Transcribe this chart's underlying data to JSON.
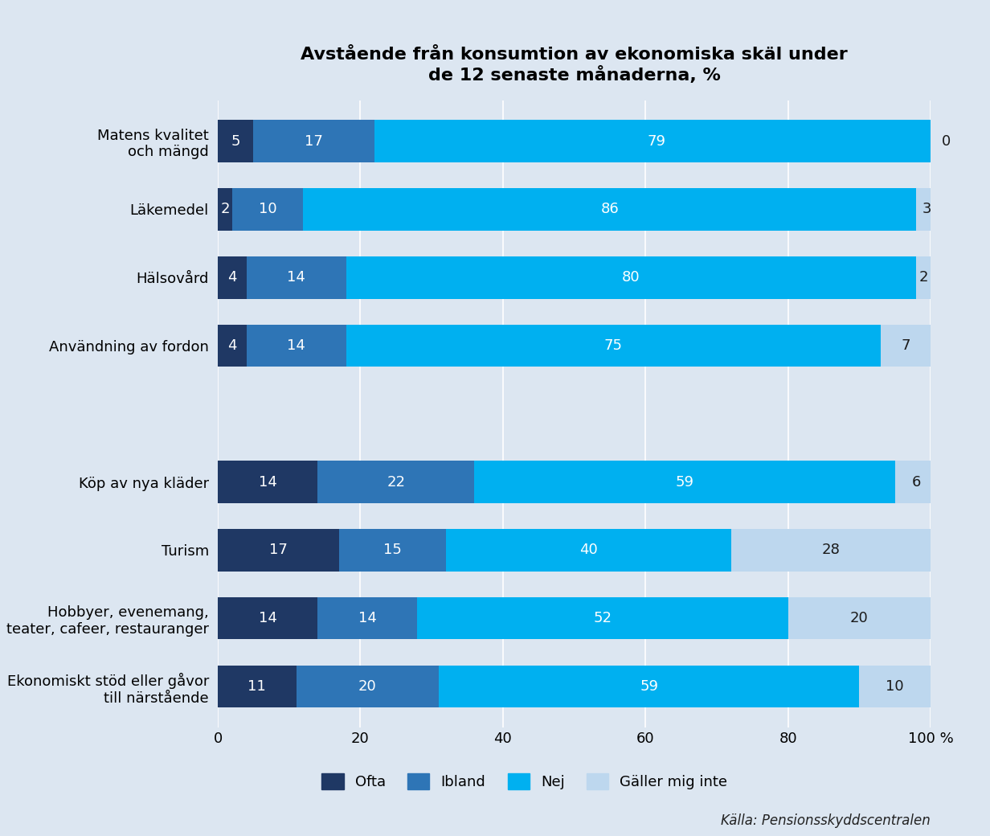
{
  "title": "Avstående från konsumtion av ekonomiska skäl under\nde 12 senaste månaderna, %",
  "categories": [
    "Matens kvalitet\noch mängd",
    "Läkemedel",
    "Hälsovård",
    "Användning av fordon",
    "",
    "Köp av nya kläder",
    "Turism",
    "Hobbyer, evenemang,\nteater, cafeer, restauranger",
    "Ekonomiskt stöd eller gåvor\ntill närstående"
  ],
  "data": [
    [
      5,
      17,
      79,
      0
    ],
    [
      2,
      10,
      86,
      3
    ],
    [
      4,
      14,
      80,
      2
    ],
    [
      4,
      14,
      75,
      7
    ],
    [
      0,
      0,
      0,
      0
    ],
    [
      14,
      22,
      59,
      6
    ],
    [
      17,
      15,
      40,
      28
    ],
    [
      14,
      14,
      52,
      20
    ],
    [
      11,
      20,
      59,
      10
    ]
  ],
  "colors": [
    "#1f3864",
    "#2e75b6",
    "#00b0f0",
    "#bdd7ee"
  ],
  "legend_labels": [
    "Ofta",
    "Ibland",
    "Nej",
    "Gäller mig inte"
  ],
  "xlim": [
    0,
    100
  ],
  "xticks": [
    0,
    20,
    40,
    60,
    80,
    100
  ],
  "xtick_labels": [
    "0",
    "20",
    "40",
    "60",
    "80",
    "100 %"
  ],
  "background_color": "#dce6f1",
  "source_text": "Källa: Pensionsskyddscentralen",
  "title_fontsize": 16,
  "bar_height": 0.62,
  "label_fontsize": 13
}
